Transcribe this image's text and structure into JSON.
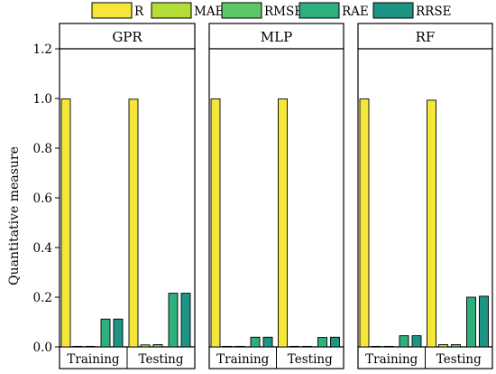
{
  "chart_data": {
    "type": "bar",
    "ylabel": "Quantitative measure",
    "ylim": [
      0,
      1.2
    ],
    "yticks": [
      "0.0",
      "0.2",
      "0.4",
      "0.6",
      "0.8",
      "1.0",
      "1.2"
    ],
    "grid": false,
    "legend_position": "top",
    "groups": [
      "Training",
      "Testing"
    ],
    "legend": [
      {
        "name": "R",
        "color": "#f5e63a"
      },
      {
        "name": "MAE",
        "color": "#b4dd37"
      },
      {
        "name": "RMSE",
        "color": "#5cc766"
      },
      {
        "name": "RAE",
        "color": "#2eb07c"
      },
      {
        "name": "RRSE",
        "color": "#1e9485"
      }
    ],
    "panels": [
      {
        "title": "GPR",
        "values": {
          "Training": [
            0.998,
            0.002,
            0.002,
            0.112,
            0.112
          ],
          "Testing": [
            0.997,
            0.008,
            0.009,
            0.216,
            0.216
          ]
        }
      },
      {
        "title": "MLP",
        "values": {
          "Training": [
            0.998,
            0.0,
            0.0,
            0.039,
            0.039
          ],
          "Testing": [
            0.998,
            0.0,
            0.0,
            0.038,
            0.039
          ]
        }
      },
      {
        "title": "RF",
        "values": {
          "Training": [
            0.998,
            0.0,
            0.0,
            0.045,
            0.045
          ],
          "Testing": [
            0.993,
            0.009,
            0.009,
            0.2,
            0.204
          ]
        }
      }
    ]
  }
}
